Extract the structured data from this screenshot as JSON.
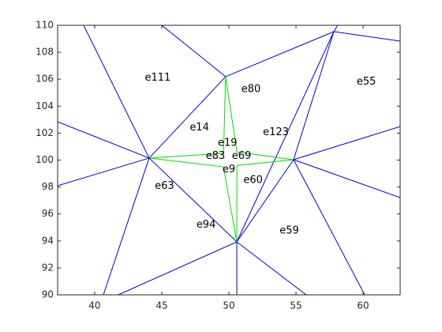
{
  "chart_data": {
    "type": "mesh",
    "xlim": [
      37.24,
      62.76
    ],
    "ylim": [
      90,
      110
    ],
    "xticks": [
      40,
      45,
      50,
      55,
      60
    ],
    "yticks": [
      90,
      92,
      94,
      96,
      98,
      100,
      102,
      104,
      106,
      108,
      110
    ],
    "series": [
      {
        "color": "#0000cc",
        "edges": [
          {
            "x": [
              39.18,
              44.06
            ],
            "y": [
              110,
              100.15
            ]
          },
          {
            "x": [
              45.0,
              49.76
            ],
            "y": [
              110,
              106.19
            ]
          },
          {
            "x": [
              37.24,
              44.06
            ],
            "y": [
              102.84,
              100.15
            ]
          },
          {
            "x": [
              37.24,
              44.06
            ],
            "y": [
              98.09,
              100.15
            ]
          },
          {
            "x": [
              44.06,
              40.65
            ],
            "y": [
              100.15,
              90
            ]
          },
          {
            "x": [
              44.06,
              50.59
            ],
            "y": [
              100.15,
              93.93
            ]
          },
          {
            "x": [
              44.06,
              49.76
            ],
            "y": [
              100.15,
              106.19
            ]
          },
          {
            "x": [
              49.76,
              57.82
            ],
            "y": [
              106.19,
              109.53
            ]
          },
          {
            "x": [
              57.82,
              50.59
            ],
            "y": [
              109.53,
              93.93
            ]
          },
          {
            "x": [
              57.82,
              54.82
            ],
            "y": [
              109.53,
              100.03
            ]
          },
          {
            "x": [
              57.82,
              58.1
            ],
            "y": [
              109.53,
              110
            ]
          },
          {
            "x": [
              57.82,
              62.76
            ],
            "y": [
              109.53,
              108.83
            ]
          },
          {
            "x": [
              54.82,
              62.76
            ],
            "y": [
              100.03,
              102.49
            ]
          },
          {
            "x": [
              54.82,
              62.76
            ],
            "y": [
              100.03,
              97.21
            ]
          },
          {
            "x": [
              54.82,
              60.12
            ],
            "y": [
              100.03,
              90
            ]
          },
          {
            "x": [
              54.82,
              50.59
            ],
            "y": [
              100.03,
              93.93
            ]
          },
          {
            "x": [
              50.59,
              50.59
            ],
            "y": [
              93.93,
              90
            ]
          },
          {
            "x": [
              50.59,
              55.76
            ],
            "y": [
              93.93,
              90
            ]
          },
          {
            "x": [
              50.59,
              41.76
            ],
            "y": [
              93.93,
              90
            ]
          }
        ]
      },
      {
        "color": "#00dd00",
        "edges": [
          {
            "x": [
              44.06,
              49.6,
              49.76,
              50.6,
              54.82,
              50.6,
              50.59,
              49.6,
              44.06
            ],
            "y": [
              100.15,
              100.5,
              106.19,
              100.6,
              100.03,
              99.6,
              93.93,
              99.5,
              100.15
            ]
          }
        ]
      }
    ],
    "labels": [
      {
        "text": "e111",
        "x": 44.7,
        "y": 106.1
      },
      {
        "text": "e80",
        "x": 51.65,
        "y": 105.25
      },
      {
        "text": "e55",
        "x": 60.24,
        "y": 105.8
      },
      {
        "text": "e14",
        "x": 47.8,
        "y": 102.4
      },
      {
        "text": "e123",
        "x": 53.5,
        "y": 102.05
      },
      {
        "text": "e19",
        "x": 49.9,
        "y": 101.26
      },
      {
        "text": "e83",
        "x": 49.0,
        "y": 100.3
      },
      {
        "text": "e69",
        "x": 50.94,
        "y": 100.3
      },
      {
        "text": "e9",
        "x": 50.0,
        "y": 99.3
      },
      {
        "text": "e63",
        "x": 45.2,
        "y": 98.05
      },
      {
        "text": "e60",
        "x": 51.8,
        "y": 98.5
      },
      {
        "text": "e94",
        "x": 48.3,
        "y": 95.2
      },
      {
        "text": "e59",
        "x": 54.5,
        "y": 94.75
      }
    ]
  }
}
